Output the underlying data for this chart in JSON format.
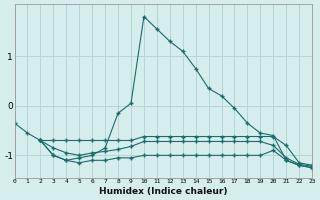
{
  "xlabel": "Humidex (Indice chaleur)",
  "background_color": "#d6eded",
  "grid_color": "#b8d4d4",
  "line_color": "#1a6b6b",
  "x_ticks": [
    0,
    1,
    2,
    3,
    4,
    5,
    6,
    7,
    8,
    9,
    10,
    11,
    12,
    13,
    14,
    15,
    16,
    17,
    18,
    19,
    20,
    21,
    22,
    23
  ],
  "y_ticks": [
    -1,
    0,
    1
  ],
  "xlim": [
    0,
    23
  ],
  "ylim": [
    -1.45,
    2.05
  ],
  "lines": [
    {
      "x": [
        0,
        1,
        2,
        3,
        4,
        5,
        6,
        7,
        8,
        9,
        10,
        11,
        12,
        13,
        14,
        15,
        16,
        17,
        18,
        19,
        20,
        21,
        22,
        23
      ],
      "y": [
        -0.35,
        -0.55,
        -0.7,
        -1.0,
        -1.1,
        -1.05,
        -1.0,
        -0.85,
        -0.15,
        0.05,
        1.8,
        1.55,
        1.3,
        1.1,
        0.75,
        0.35,
        0.2,
        -0.05,
        -0.35,
        -0.55,
        -0.6,
        -1.1,
        -1.2,
        -1.25
      ]
    },
    {
      "x": [
        2,
        3,
        4,
        5,
        6,
        7,
        8,
        9,
        10,
        11,
        12,
        13,
        14,
        15,
        16,
        17,
        18,
        19,
        20,
        21,
        22,
        23
      ],
      "y": [
        -0.7,
        -0.7,
        -0.7,
        -0.7,
        -0.7,
        -0.7,
        -0.7,
        -0.7,
        -0.62,
        -0.62,
        -0.62,
        -0.62,
        -0.62,
        -0.62,
        -0.62,
        -0.62,
        -0.62,
        -0.62,
        -0.62,
        -0.8,
        -1.15,
        -1.2
      ]
    },
    {
      "x": [
        2,
        3,
        4,
        5,
        6,
        7,
        8,
        9,
        10,
        11,
        12,
        13,
        14,
        15,
        16,
        17,
        18,
        19,
        20,
        21,
        22,
        23
      ],
      "y": [
        -0.7,
        -0.85,
        -0.95,
        -1.0,
        -0.95,
        -0.92,
        -0.88,
        -0.82,
        -0.72,
        -0.72,
        -0.72,
        -0.72,
        -0.72,
        -0.72,
        -0.72,
        -0.72,
        -0.72,
        -0.72,
        -0.8,
        -1.05,
        -1.18,
        -1.22
      ]
    },
    {
      "x": [
        2,
        3,
        4,
        5,
        6,
        7,
        8,
        9,
        10,
        11,
        12,
        13,
        14,
        15,
        16,
        17,
        18,
        19,
        20,
        21,
        22,
        23
      ],
      "y": [
        -0.7,
        -1.0,
        -1.1,
        -1.15,
        -1.1,
        -1.1,
        -1.05,
        -1.05,
        -1.0,
        -1.0,
        -1.0,
        -1.0,
        -1.0,
        -1.0,
        -1.0,
        -1.0,
        -1.0,
        -1.0,
        -0.9,
        -1.1,
        -1.2,
        -1.25
      ]
    }
  ]
}
